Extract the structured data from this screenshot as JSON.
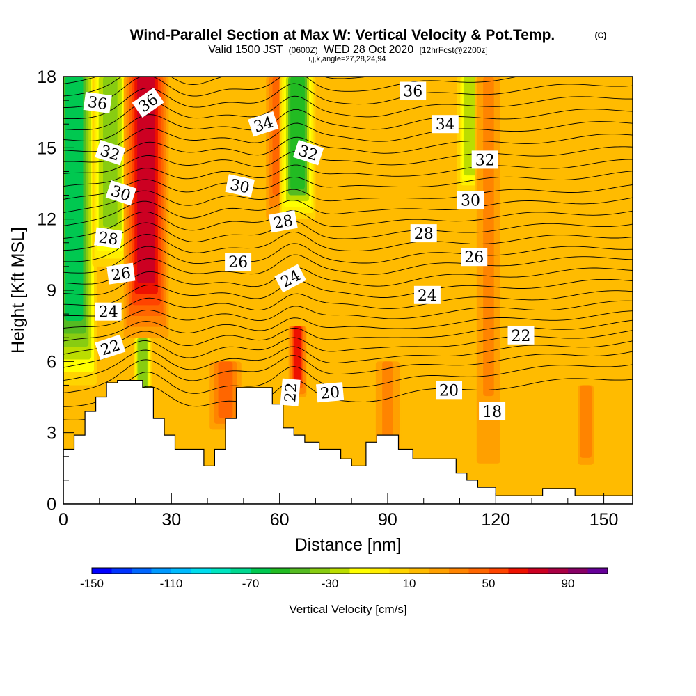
{
  "header": {
    "title": "Wind-Parallel Section at Max W: Vertical Velocity & Pot.Temp.",
    "copyright": "(C)",
    "valid_prefix": "Valid 1500 JST",
    "valid_utc": "(0600Z)",
    "valid_date": "WED 28 Oct 2020",
    "forecast": "[12hrFcst@2200z]",
    "indices": "i,j,k,angle=27,28,24,94"
  },
  "chart_data": {
    "type": "heatmap",
    "xlabel": "Distance [nm]",
    "ylabel": "Height [Kft MSL]",
    "xlim": [
      0,
      158
    ],
    "ylim": [
      0,
      18
    ],
    "x_ticks": [
      0,
      30,
      60,
      90,
      120,
      150
    ],
    "y_ticks": [
      0,
      3,
      6,
      9,
      12,
      15,
      18
    ],
    "x_minor_step": 10,
    "y_minor_step": 1,
    "fill_field": "Vertical Velocity",
    "contour_field": "Potential Temperature",
    "colorbar": {
      "label": "Vertical Velocity [cm/s]",
      "min": -150,
      "max": 110,
      "step": 10,
      "tick_labels": [
        -150,
        -110,
        -70,
        -30,
        10,
        50,
        90
      ],
      "colors": [
        "#0000ff",
        "#0033ff",
        "#0066ff",
        "#0099ff",
        "#00bbff",
        "#00ddee",
        "#00e5c0",
        "#00d890",
        "#00c850",
        "#22bb22",
        "#55bb22",
        "#88cc11",
        "#bbdd00",
        "#ffff00",
        "#ffee00",
        "#ffd400",
        "#ffbb00",
        "#ffa000",
        "#ff8400",
        "#ff6600",
        "#ff4400",
        "#ee1100",
        "#cc0022",
        "#aa0044",
        "#880066",
        "#660099"
      ]
    },
    "background_w": 15,
    "velocity_features": [
      {
        "x": 3,
        "width": 5,
        "w": -62,
        "ybot": 5,
        "ytop": 18
      },
      {
        "x": 13,
        "width": 4,
        "w": -38,
        "ybot": 10,
        "ytop": 18
      },
      {
        "x": 23,
        "width": 5,
        "w": 78,
        "ybot": 7,
        "ytop": 18
      },
      {
        "x": 22,
        "width": 2,
        "w": -40,
        "ybot": 3.5,
        "ytop": 7
      },
      {
        "x": 60,
        "width": 3,
        "w": 45,
        "ybot": 12,
        "ytop": 18
      },
      {
        "x": 65,
        "width": 4,
        "w": -52,
        "ybot": 12,
        "ytop": 18
      },
      {
        "x": 65,
        "width": 2,
        "w": 62,
        "ybot": 4.5,
        "ytop": 7.5
      },
      {
        "x": 45,
        "width": 4,
        "w": 42,
        "ybot": 3,
        "ytop": 6
      },
      {
        "x": 90,
        "width": 3,
        "w": 32,
        "ybot": 2,
        "ytop": 6
      },
      {
        "x": 113,
        "width": 3,
        "w": -28,
        "ybot": 13,
        "ytop": 18
      },
      {
        "x": 118,
        "width": 3,
        "w": 30,
        "ybot": 1,
        "ytop": 18
      },
      {
        "x": 145,
        "width": 2,
        "w": 38,
        "ybot": 1.5,
        "ytop": 5
      }
    ],
    "terrain": [
      [
        0,
        2.3
      ],
      [
        3,
        2.3
      ],
      [
        3,
        2.9
      ],
      [
        6,
        2.9
      ],
      [
        6,
        3.9
      ],
      [
        9,
        3.9
      ],
      [
        9,
        4.5
      ],
      [
        12,
        4.5
      ],
      [
        12,
        5.1
      ],
      [
        15,
        5.1
      ],
      [
        15,
        5.2
      ],
      [
        22,
        5.2
      ],
      [
        22,
        4.9
      ],
      [
        25,
        4.9
      ],
      [
        25,
        3.6
      ],
      [
        28,
        3.6
      ],
      [
        28,
        2.9
      ],
      [
        31,
        2.9
      ],
      [
        31,
        2.3
      ],
      [
        39,
        2.3
      ],
      [
        39,
        1.6
      ],
      [
        42,
        1.6
      ],
      [
        42,
        2.3
      ],
      [
        45,
        2.3
      ],
      [
        45,
        3.6
      ],
      [
        48,
        3.6
      ],
      [
        48,
        4.9
      ],
      [
        58,
        4.9
      ],
      [
        58,
        4.2
      ],
      [
        61,
        4.2
      ],
      [
        61,
        3.2
      ],
      [
        64,
        3.2
      ],
      [
        64,
        2.9
      ],
      [
        67,
        2.9
      ],
      [
        67,
        2.6
      ],
      [
        71,
        2.6
      ],
      [
        71,
        2.3
      ],
      [
        77,
        2.3
      ],
      [
        77,
        1.9
      ],
      [
        80,
        1.9
      ],
      [
        80,
        1.6
      ],
      [
        84,
        1.6
      ],
      [
        84,
        2.6
      ],
      [
        87,
        2.6
      ],
      [
        87,
        2.9
      ],
      [
        93,
        2.9
      ],
      [
        93,
        2.3
      ],
      [
        97,
        2.3
      ],
      [
        97,
        1.9
      ],
      [
        109,
        1.9
      ],
      [
        109,
        1.3
      ],
      [
        112,
        1.3
      ],
      [
        112,
        1.0
      ],
      [
        115,
        1.0
      ],
      [
        115,
        0.7
      ],
      [
        120,
        0.7
      ],
      [
        120,
        0.35
      ],
      [
        133,
        0.35
      ],
      [
        133,
        0.65
      ],
      [
        142,
        0.65
      ],
      [
        142,
        0.35
      ],
      [
        158,
        0.35
      ]
    ],
    "isentropes": [
      {
        "base": 3.6,
        "amp": 1.6
      },
      {
        "base": 4.2,
        "amp": 1.6
      },
      {
        "base": 4.8,
        "amp": 1.5
      },
      {
        "base": 5.3,
        "amp": 1.4
      },
      {
        "base": 5.8,
        "amp": 1.3
      },
      {
        "base": 6.3,
        "amp": 1.2
      },
      {
        "base": 6.8,
        "amp": 1.1
      },
      {
        "base": 7.3,
        "amp": 1.05
      },
      {
        "base": 7.8,
        "amp": 1.0
      },
      {
        "base": 8.3,
        "amp": 1.0
      },
      {
        "base": 8.8,
        "amp": 1.0
      },
      {
        "base": 9.3,
        "amp": 1.0
      },
      {
        "base": 9.8,
        "amp": 0.95
      },
      {
        "base": 10.3,
        "amp": 0.95
      },
      {
        "base": 10.8,
        "amp": 0.95
      },
      {
        "base": 11.3,
        "amp": 0.95
      },
      {
        "base": 11.8,
        "amp": 0.95
      },
      {
        "base": 12.3,
        "amp": 0.95
      },
      {
        "base": 12.8,
        "amp": 1.0
      },
      {
        "base": 13.3,
        "amp": 1.0
      },
      {
        "base": 13.8,
        "amp": 1.05
      },
      {
        "base": 14.3,
        "amp": 1.1
      },
      {
        "base": 14.8,
        "amp": 1.15
      },
      {
        "base": 15.3,
        "amp": 1.2
      },
      {
        "base": 15.8,
        "amp": 1.25
      },
      {
        "base": 16.3,
        "amp": 1.3
      },
      {
        "base": 16.8,
        "amp": 1.35
      },
      {
        "base": 17.3,
        "amp": 1.4
      },
      {
        "base": 17.8,
        "amp": 1.45
      }
    ],
    "contour_labels": [
      {
        "text": "36",
        "x": 9.5,
        "y": 16.9,
        "rot": 8
      },
      {
        "text": "36",
        "x": 23.5,
        "y": 16.9,
        "rot": -35
      },
      {
        "text": "34",
        "x": 55.5,
        "y": 16.0,
        "rot": -18
      },
      {
        "text": "36",
        "x": 97,
        "y": 17.4,
        "rot": 0
      },
      {
        "text": "34",
        "x": 106,
        "y": 16.0,
        "rot": 0
      },
      {
        "text": "32",
        "x": 13,
        "y": 14.8,
        "rot": 18
      },
      {
        "text": "32",
        "x": 68,
        "y": 14.8,
        "rot": 18
      },
      {
        "text": "32",
        "x": 117,
        "y": 14.5,
        "rot": 0
      },
      {
        "text": "30",
        "x": 16,
        "y": 13.1,
        "rot": 18
      },
      {
        "text": "30",
        "x": 49,
        "y": 13.4,
        "rot": 12
      },
      {
        "text": "30",
        "x": 113,
        "y": 12.8,
        "rot": 0
      },
      {
        "text": "28",
        "x": 12.5,
        "y": 11.2,
        "rot": 8
      },
      {
        "text": "28",
        "x": 61,
        "y": 11.9,
        "rot": -10
      },
      {
        "text": "28",
        "x": 100,
        "y": 11.4,
        "rot": 0
      },
      {
        "text": "26",
        "x": 16,
        "y": 9.7,
        "rot": -8
      },
      {
        "text": "26",
        "x": 48.5,
        "y": 10.2,
        "rot": 0
      },
      {
        "text": "26",
        "x": 114,
        "y": 10.4,
        "rot": 0
      },
      {
        "text": "24",
        "x": 12.5,
        "y": 8.1,
        "rot": 0
      },
      {
        "text": "24",
        "x": 63,
        "y": 9.5,
        "rot": -28
      },
      {
        "text": "24",
        "x": 101,
        "y": 8.8,
        "rot": 0
      },
      {
        "text": "22",
        "x": 13,
        "y": 6.6,
        "rot": -18
      },
      {
        "text": "22",
        "x": 127,
        "y": 7.1,
        "rot": 0
      },
      {
        "text": "22",
        "x": 63,
        "y": 4.7,
        "rot": -85
      },
      {
        "text": "20",
        "x": 74,
        "y": 4.7,
        "rot": -5
      },
      {
        "text": "20",
        "x": 107,
        "y": 4.8,
        "rot": 0
      },
      {
        "text": "18",
        "x": 119,
        "y": 3.9,
        "rot": 0
      }
    ]
  }
}
